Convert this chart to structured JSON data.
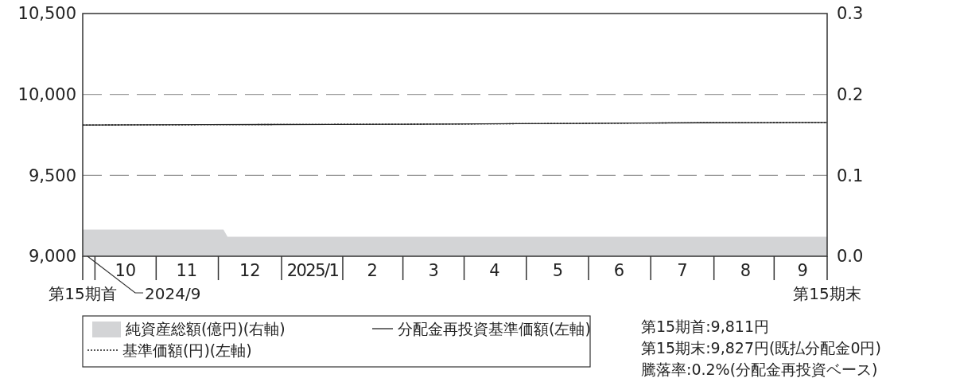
{
  "chart_data": {
    "type": "line",
    "xlim": [
      "2024-09-25",
      "2025-09-25"
    ],
    "xticks": [
      {
        "value": "2024-10-16",
        "label": "10"
      },
      {
        "value": "2024-11-15",
        "label": "11"
      },
      {
        "value": "2024-12-16",
        "label": "12"
      },
      {
        "value": "2025-01-16",
        "label": "2025/1"
      },
      {
        "value": "2025-02-14",
        "label": "2"
      },
      {
        "value": "2025-03-16",
        "label": "3"
      },
      {
        "value": "2025-04-15",
        "label": "4"
      },
      {
        "value": "2025-05-16",
        "label": "5"
      },
      {
        "value": "2025-06-15",
        "label": "6"
      },
      {
        "value": "2025-07-16",
        "label": "7"
      },
      {
        "value": "2025-08-16",
        "label": "8"
      },
      {
        "value": "2025-09-13",
        "label": "9"
      }
    ],
    "ylim": [
      9000,
      10500
    ],
    "yticks": [
      {
        "value": 9000,
        "label": "9,000"
      },
      {
        "value": 9500,
        "label": "9,500"
      },
      {
        "value": 10000,
        "label": "10,000"
      },
      {
        "value": 10500,
        "label": "10,500"
      }
    ],
    "y2lim": [
      0,
      0.3
    ],
    "y2ticks": [
      {
        "value": 0,
        "label": "0.0"
      },
      0.1,
      0.2,
      0.3
    ],
    "grid": "y",
    "legend": "bottom",
    "x": [
      "2024-09-25",
      "2024-10-25",
      "2024-11-25",
      "2024-12-25",
      "2025-01-25",
      "2025-02-25",
      "2025-03-25",
      "2025-04-25",
      "2025-05-25",
      "2025-06-25",
      "2025-07-25",
      "2025-08-25",
      "2025-09-25"
    ],
    "series": [
      {
        "name": "純資産総額(億円)(右軸)",
        "type": "area",
        "axis": "y2",
        "color": "#d3d4d6",
        "x": [
          "2024-09-25",
          "2024-12-03",
          "2024-12-05",
          "2025-09-25"
        ],
        "values": [
          0.033,
          0.033,
          0.024,
          0.024
        ]
      },
      {
        "name": "分配金再投資基準価額(左軸)",
        "color": "#222222",
        "line_style": "solid",
        "values": [
          9811,
          9812,
          9813,
          9814,
          9815,
          9816,
          9817,
          9819,
          9821,
          9823,
          9825,
          9826,
          9827
        ]
      },
      {
        "name": "基準価額(円)(左軸)",
        "color": "#222222",
        "line_style": "dotted",
        "values": [
          9811,
          9812,
          9813,
          9814,
          9815,
          9816,
          9817,
          9819,
          9821,
          9823,
          9825,
          9826,
          9827
        ]
      }
    ],
    "annotations": [
      {
        "text": "第15期首",
        "x": "2024-09-25"
      },
      "2024/9",
      {
        "text": "第15期末",
        "x": "2025-09-25"
      },
      "第15期首:9,811円",
      "第15期末:9,827円(既払分配金0円)",
      "騰落率:0.2%(分配金再投資ベース)"
    ]
  }
}
